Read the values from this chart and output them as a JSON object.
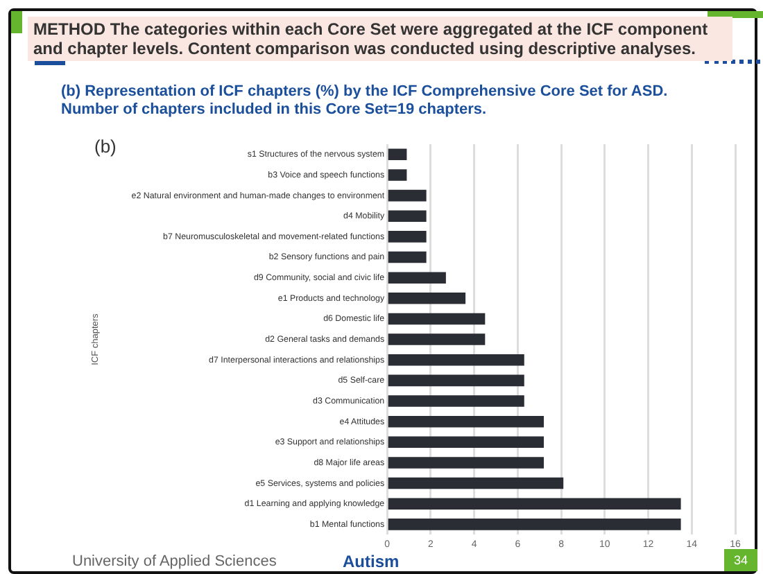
{
  "chart_data": {
    "type": "bar",
    "orientation": "horizontal",
    "title": "METHOD The categories within each Core Set were aggregated at the ICF component and chapter levels. Content comparison was conducted using descriptive analyses.",
    "subtitle": "(b) Representation of ICF chapters (%) by the ICF Comprehensive Core Set for ASD. Number of chapters included in this Core Set=19 chapters.",
    "ylabel": "ICF chapters",
    "annotations": [
      "(b)",
      "University of Applied Sciences",
      "Autism",
      "34"
    ],
    "categories": [
      "s1 Structures of the nervous system",
      "b3 Voice and speech functions",
      "e2 Natural environment and human-made changes to environment",
      "d4 Mobility",
      "b7 Neuromusculoskeletal and movement-related functions",
      "b2 Sensory functions and pain",
      "d9 Community, social and civic life",
      "e1 Products and technology",
      "d6 Domestic life",
      "d2 General tasks and demands",
      "d7 Interpersonal interactions and relationships",
      "d5 Self-care",
      "d3 Communication",
      "e4 Attitudes",
      "e3 Support and relationships",
      "d8 Major life areas",
      "e5 Services, systems and policies",
      "d1 Learning and applying knowledge",
      "b1 Mental functions"
    ],
    "values": [
      0.9,
      0.9,
      1.8,
      1.8,
      1.8,
      1.8,
      2.7,
      3.6,
      4.5,
      4.5,
      6.3,
      6.3,
      6.3,
      7.2,
      7.2,
      7.2,
      8.1,
      13.5,
      13.5
    ],
    "color": "#2b2d35",
    "xlim": [
      0,
      16
    ],
    "xticks": [
      0,
      2,
      4,
      6,
      8,
      10,
      12,
      14,
      16
    ],
    "grid": "x",
    "legend": false
  }
}
